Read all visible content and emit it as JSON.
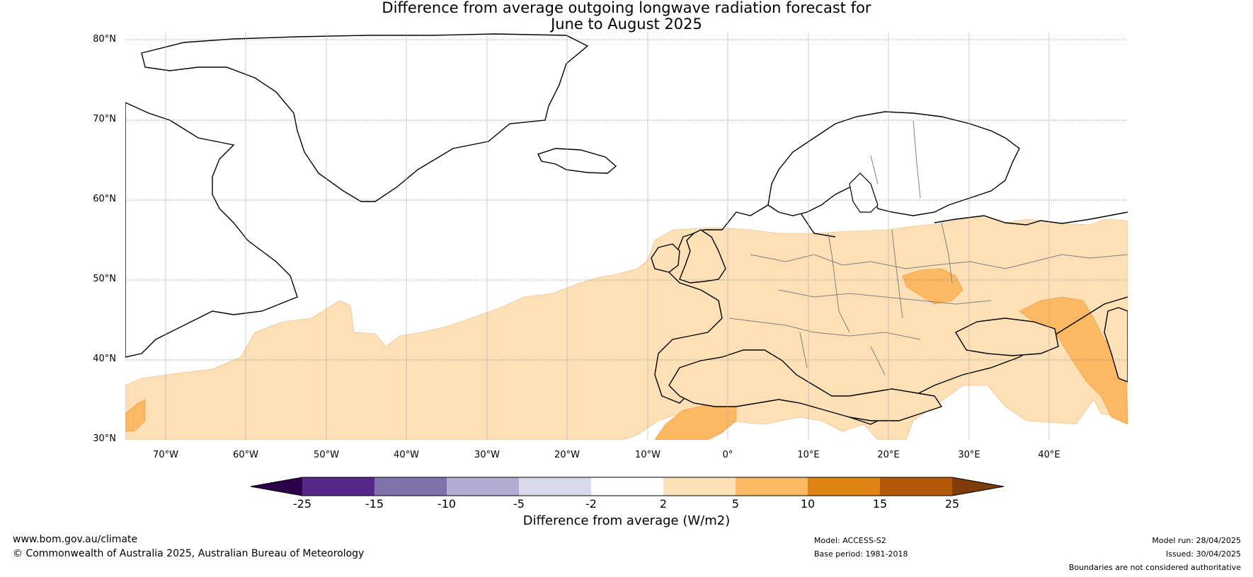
{
  "title": {
    "line1": "Difference from average outgoing longwave radiation forecast for",
    "line2": "June to August 2025"
  },
  "map": {
    "lat_labels": [
      "80°N",
      "70°N",
      "60°N",
      "50°N",
      "40°N",
      "30°N"
    ],
    "lon_labels": [
      "70°W",
      "60°W",
      "50°W",
      "40°W",
      "30°W",
      "20°W",
      "10°W",
      "0°",
      "10°E",
      "20°E",
      "30°E",
      "40°E"
    ],
    "extent": {
      "lon_min": -75,
      "lon_max": 50,
      "lat_min": 30,
      "lat_max": 81
    },
    "colors": {
      "coast": "#000000",
      "borders": "#808080",
      "grid": "#888888",
      "anomaly_2_5": "#fde0b5",
      "anomaly_5_10": "#fdb863"
    }
  },
  "colorbar": {
    "labels": [
      "-25",
      "-15",
      "-10",
      "-5",
      "-2",
      "2",
      "5",
      "10",
      "15",
      "25"
    ],
    "colors": [
      "#2d004b",
      "#542788",
      "#8073ac",
      "#b2abd2",
      "#d8daeb",
      "#ffffff",
      "#fee0b6",
      "#fdb863",
      "#e08214",
      "#b35806",
      "#7f3b08"
    ],
    "title": "Difference from average (W/m2)"
  },
  "footer": {
    "url": "www.bom.gov.au/climate",
    "copyright": "© Commonwealth of Australia 2025, Australian Bureau of Meteorology",
    "model": "Model: ACCESS-S2",
    "base_period": "Base period: 1981-2018",
    "model_run": "Model run: 28/04/2025",
    "issued": "Issued: 30/04/2025",
    "disclaimer": "Boundaries are not considered authoritative"
  }
}
